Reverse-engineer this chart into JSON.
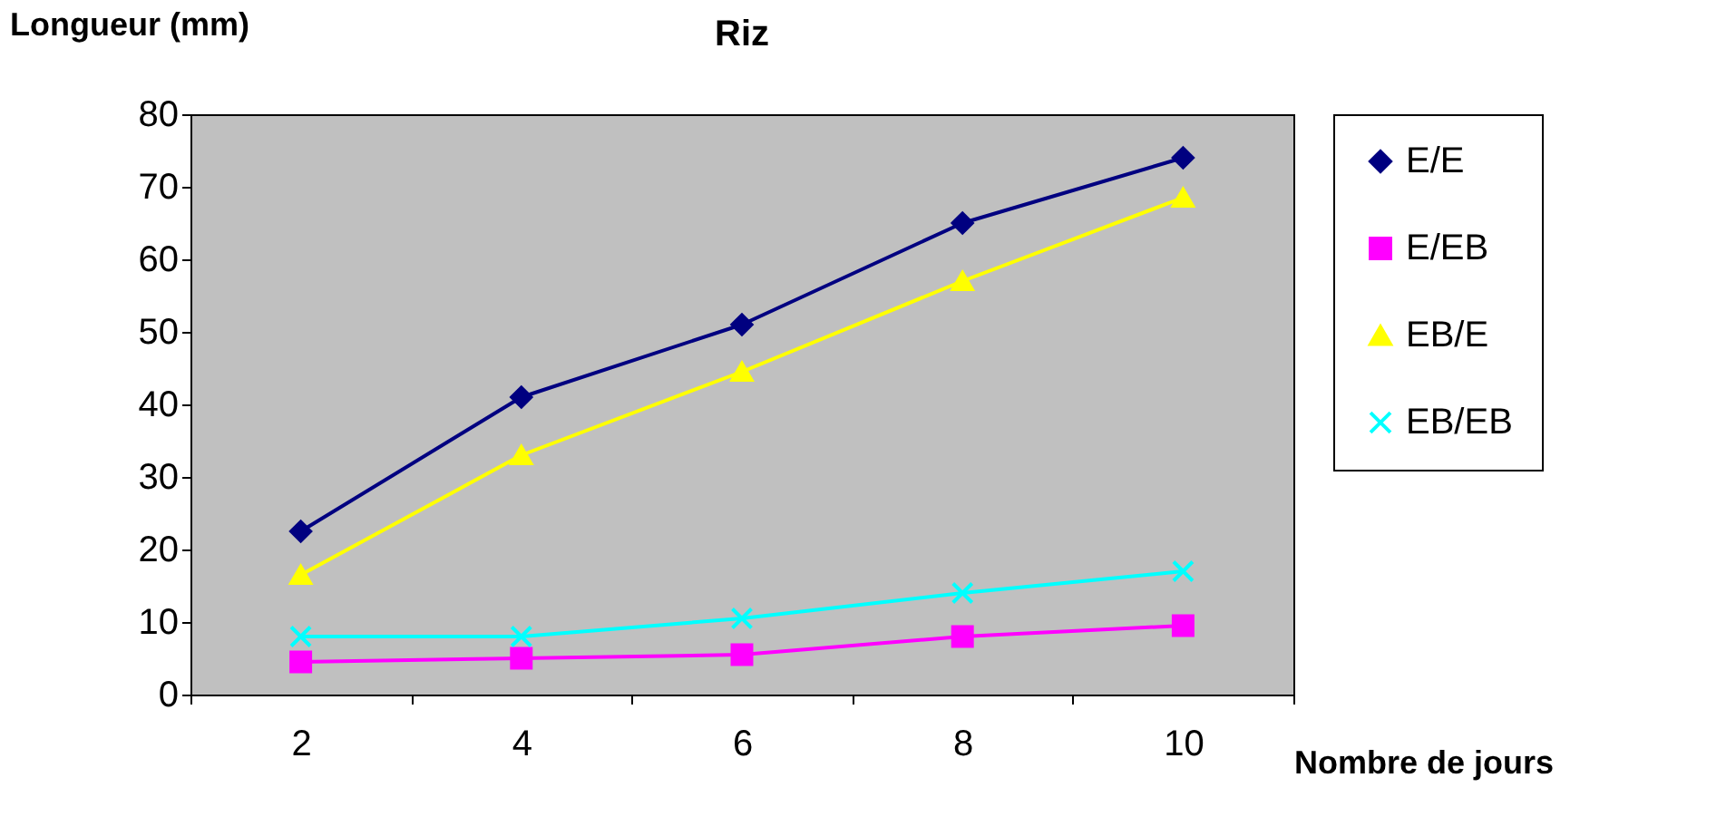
{
  "chart_data": {
    "type": "line",
    "title": "Riz",
    "xlabel": "Nombre de jours",
    "ylabel": "Longueur (mm)",
    "categories": [
      "2",
      "4",
      "6",
      "8",
      "10"
    ],
    "series": [
      {
        "name": "E/E",
        "color": "#000080",
        "line_style": "solid",
        "marker": "diamond",
        "values": [
          22.5,
          41,
          51,
          65,
          74
        ]
      },
      {
        "name": "E/EB",
        "color": "#ff00ff",
        "line_style": "solid",
        "marker": "square",
        "values": [
          4.5,
          5,
          5.5,
          8,
          9.5
        ]
      },
      {
        "name": "EB/E",
        "color": "#ffff00",
        "line_style": "solid",
        "marker": "triangle",
        "values": [
          16.5,
          33,
          44.5,
          57,
          68.5
        ]
      },
      {
        "name": "EB/EB",
        "color": "#00ffff",
        "line_style": "solid",
        "marker": "cross",
        "values": [
          8,
          8,
          10.5,
          14,
          17
        ]
      }
    ],
    "ylim": [
      0,
      80
    ],
    "yticks": [
      0,
      10,
      20,
      30,
      40,
      50,
      60,
      70,
      80
    ],
    "grid": false,
    "legend": "right"
  }
}
